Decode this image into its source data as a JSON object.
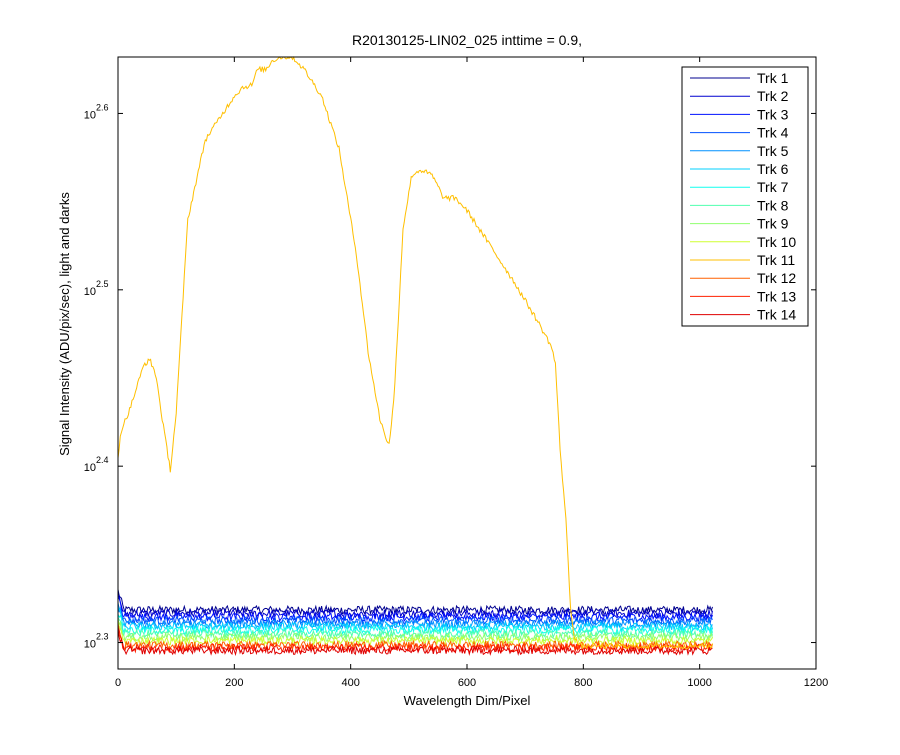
{
  "chart_data": {
    "type": "line",
    "title": "R20130125-LIN02_025 inttime = 0.9,",
    "xlabel": "Wavelength Dim/Pixel",
    "ylabel": "Signal Intensity (ADU/pix/sec), light and darks",
    "xlim": [
      0,
      1200
    ],
    "ylim_log10": [
      2.285,
      2.632
    ],
    "y_scale": "log",
    "grid": false,
    "legend_position": "top-right",
    "x_ticks": [
      0,
      200,
      400,
      600,
      800,
      1000,
      1200
    ],
    "y_ticks": [
      {
        "base": "10",
        "exponent": "2.3",
        "log10": 2.3
      },
      {
        "base": "10",
        "exponent": "2.4",
        "log10": 2.4
      },
      {
        "base": "10",
        "exponent": "2.5",
        "log10": 2.5
      },
      {
        "base": "10",
        "exponent": "2.6",
        "log10": 2.6
      }
    ],
    "series": [
      {
        "name": "Trk 1",
        "color": "#00008f",
        "x_range": [
          0,
          1023
        ],
        "log10_level": 2.3185
      },
      {
        "name": "Trk 2",
        "color": "#0000cf",
        "x_range": [
          0,
          1023
        ],
        "log10_level": 2.3165
      },
      {
        "name": "Trk 3",
        "color": "#0010ff",
        "x_range": [
          0,
          1023
        ],
        "log10_level": 2.3145
      },
      {
        "name": "Trk 4",
        "color": "#0050ff",
        "x_range": [
          0,
          1023
        ],
        "log10_level": 2.3125
      },
      {
        "name": "Trk 5",
        "color": "#0090ff",
        "x_range": [
          0,
          1023
        ],
        "log10_level": 2.3105
      },
      {
        "name": "Trk 6",
        "color": "#00d0ff",
        "x_range": [
          0,
          1023
        ],
        "log10_level": 2.309
      },
      {
        "name": "Trk 7",
        "color": "#10ffef",
        "x_range": [
          0,
          1023
        ],
        "log10_level": 2.307
      },
      {
        "name": "Trk 8",
        "color": "#50ffaf",
        "x_range": [
          0,
          1023
        ],
        "log10_level": 2.305
      },
      {
        "name": "Trk 9",
        "color": "#90ff6f",
        "x_range": [
          0,
          1023
        ],
        "log10_level": 2.303
      },
      {
        "name": "Trk 10",
        "color": "#cfff30",
        "x_range": [
          0,
          1023
        ],
        "log10_level": 2.301
      },
      {
        "name": "Trk 11",
        "color": "#ffbf00",
        "x_range": [
          0,
          1023
        ],
        "profile_x": [
          0,
          5,
          20,
          45,
          55,
          65,
          80,
          90,
          100,
          120,
          150,
          180,
          200,
          215,
          230,
          240,
          255,
          265,
          280,
          300,
          320,
          350,
          380,
          410,
          430,
          450,
          460,
          466,
          475,
          490,
          505,
          520,
          540,
          560,
          580,
          600,
          640,
          680,
          720,
          745,
          752,
          760,
          770,
          778,
          785,
          795,
          1023
        ],
        "profile_log10": [
          2.405,
          2.42,
          2.432,
          2.458,
          2.46,
          2.452,
          2.418,
          2.398,
          2.43,
          2.54,
          2.585,
          2.6,
          2.61,
          2.615,
          2.616,
          2.625,
          2.625,
          2.63,
          2.632,
          2.632,
          2.625,
          2.61,
          2.58,
          2.52,
          2.465,
          2.427,
          2.417,
          2.412,
          2.44,
          2.535,
          2.565,
          2.568,
          2.565,
          2.552,
          2.552,
          2.545,
          2.525,
          2.505,
          2.483,
          2.468,
          2.458,
          2.41,
          2.37,
          2.32,
          2.302,
          2.298,
          2.298
        ]
      },
      {
        "name": "Trk 12",
        "color": "#ff6000",
        "x_range": [
          0,
          1023
        ],
        "log10_level": 2.2985
      },
      {
        "name": "Trk 13",
        "color": "#ff2000",
        "x_range": [
          0,
          1023
        ],
        "log10_level": 2.297
      },
      {
        "name": "Trk 14",
        "color": "#df0000",
        "x_range": [
          0,
          1023
        ],
        "log10_level": 2.2955
      }
    ]
  }
}
